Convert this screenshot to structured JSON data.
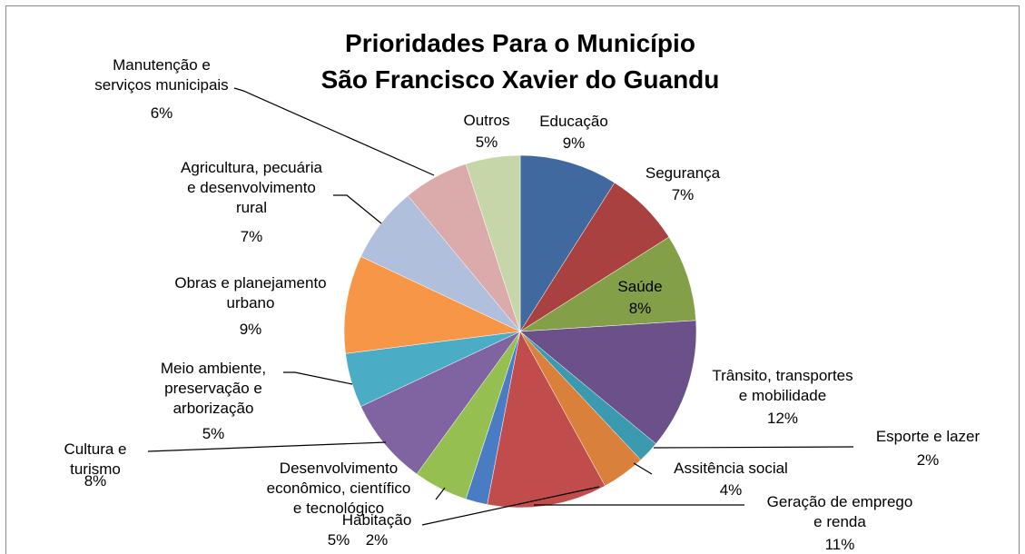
{
  "chart_data": {
    "type": "pie",
    "title": "Prioridades Para o Município\nSão Francisco Xavier do Guandu",
    "categories": [
      "Educação",
      "Segurança",
      "Saúde",
      "Trânsito, transportes\ne mobilidade",
      "Esporte e lazer",
      "Assitência social",
      "Geração de emprego\ne renda",
      "Habitação",
      "Desenvolvimento\neconômico, científico\ne tecnológico",
      "Cultura e\nturismo",
      "Meio ambiente,\npreservação e\narborização",
      "Obras e planejamento\nurbano",
      "Agricultura, pecuária\ne desenvolvimento\nrural",
      "Manutenção e\nserviços municipais",
      "Outros"
    ],
    "values": [
      9,
      7,
      8,
      12,
      2,
      4,
      11,
      2,
      5,
      8,
      5,
      9,
      7,
      6,
      5
    ],
    "value_labels": [
      "9%",
      "7%",
      "8%",
      "12%",
      "2%",
      "4%",
      "11%",
      "2%",
      "5%",
      "8%",
      "5%",
      "9%",
      "7%",
      "6%",
      "5%"
    ],
    "colors": [
      "#4069a0",
      "#a8413f",
      "#83a049",
      "#6b5089",
      "#3b9ab0",
      "#d9803a",
      "#c04c4b",
      "#4a7cc4",
      "#96bf52",
      "#8064a2",
      "#4bacc6",
      "#f79646",
      "#b0bfdc",
      "#dbaaaa",
      "#c6d6a8"
    ]
  }
}
